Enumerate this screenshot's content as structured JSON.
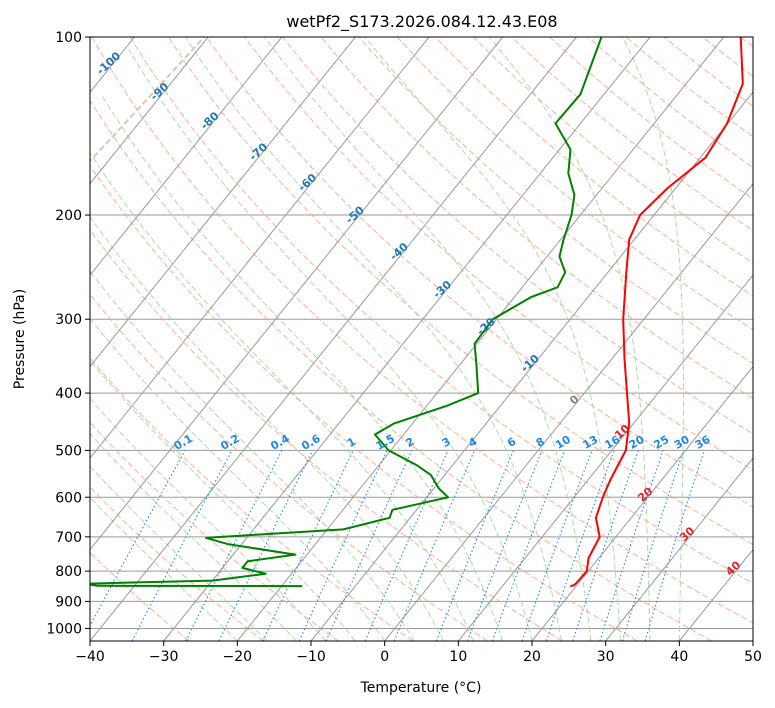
{
  "chart_data": {
    "type": "line",
    "subtype": "skew-T log-P diagram",
    "title": "wetPf2_S173.2026.084.12.43.E08",
    "xlabel": "Temperature (°C)",
    "ylabel": "Pressure (hPa)",
    "xlim": [
      -40,
      50
    ],
    "ylim": [
      1050,
      100
    ],
    "x_ticks": [
      -40,
      -30,
      -20,
      -10,
      0,
      10,
      20,
      30,
      40,
      50
    ],
    "x_tick_labels": [
      "−40",
      "−30",
      "−20",
      "−10",
      "0",
      "10",
      "20",
      "30",
      "40",
      "50"
    ],
    "y_ticks": [
      100,
      200,
      300,
      400,
      500,
      600,
      700,
      800,
      900,
      1000
    ],
    "y_tick_labels": [
      "100",
      "200",
      "300",
      "400",
      "500",
      "600",
      "700",
      "800",
      "900",
      "1000"
    ],
    "grid": true,
    "series": [
      {
        "name": "temperature",
        "color": "#ff0000",
        "points": [
          [
            848,
            19.2
          ],
          [
            845,
            19.6
          ],
          [
            835,
            19.7
          ],
          [
            800,
            19.8
          ],
          [
            760,
            18.6
          ],
          [
            700,
            17.8
          ],
          [
            650,
            15.2
          ],
          [
            600,
            13.9
          ],
          [
            560,
            13.0
          ],
          [
            500,
            11.9
          ],
          [
            450,
            9.4
          ],
          [
            400,
            5.8
          ],
          [
            350,
            1.7
          ],
          [
            300,
            -2.8
          ],
          [
            250,
            -7.5
          ],
          [
            220,
            -10.7
          ],
          [
            200,
            -11.9
          ],
          [
            180,
            -11.1
          ],
          [
            160,
            -9.3
          ],
          [
            140,
            -10.1
          ],
          [
            120,
            -12.3
          ],
          [
            100,
            -17.7
          ]
        ]
      },
      {
        "name": "dewpoint",
        "color": "#008000",
        "points": [
          [
            848,
            -17.2
          ],
          [
            847,
            -45.0
          ],
          [
            840,
            -47.0
          ],
          [
            830,
            -30.0
          ],
          [
            808,
            -23.5
          ],
          [
            790,
            -27.3
          ],
          [
            770,
            -27.3
          ],
          [
            750,
            -21.6
          ],
          [
            720,
            -31.9
          ],
          [
            703,
            -35.5
          ],
          [
            690,
            -26.0
          ],
          [
            680,
            -17.8
          ],
          [
            650,
            -12.8
          ],
          [
            630,
            -13.3
          ],
          [
            600,
            -7.1
          ],
          [
            580,
            -9.3
          ],
          [
            550,
            -11.9
          ],
          [
            530,
            -14.8
          ],
          [
            500,
            -20.3
          ],
          [
            470,
            -23.9
          ],
          [
            450,
            -22.5
          ],
          [
            420,
            -17.2
          ],
          [
            400,
            -14.4
          ],
          [
            360,
            -17.6
          ],
          [
            330,
            -20.3
          ],
          [
            300,
            -20.5
          ],
          [
            275,
            -17.7
          ],
          [
            265,
            -15.2
          ],
          [
            250,
            -15.8
          ],
          [
            235,
            -18.3
          ],
          [
            220,
            -19.6
          ],
          [
            200,
            -21.2
          ],
          [
            185,
            -23.0
          ],
          [
            170,
            -26.2
          ],
          [
            155,
            -28.5
          ],
          [
            140,
            -33.4
          ],
          [
            125,
            -33.2
          ],
          [
            100,
            -36.6
          ]
        ]
      }
    ],
    "isotherm_labels": [
      "-100",
      "-90",
      "-80",
      "-70",
      "-60",
      "-50",
      "-40",
      "-30",
      "-20",
      "-10",
      "0",
      "10",
      "20",
      "30",
      "40"
    ],
    "mixing_ratio_labels": [
      "0.1",
      "0.2",
      "0.4",
      "0.6",
      "1",
      "1.5",
      "2",
      "3",
      "4",
      "6",
      "8",
      "10",
      "13",
      "16",
      "20",
      "25",
      "30",
      "36"
    ],
    "mixing_ratio_values": [
      0.1,
      0.2,
      0.4,
      0.6,
      1,
      1.5,
      2,
      3,
      4,
      6,
      8,
      10,
      13,
      16,
      20,
      25,
      30,
      36
    ],
    "line_colors": {
      "isotherm": "#9a9a9a",
      "dry_adiabat": "#f4a582",
      "moist_adiabat": "#a6d5a6",
      "mixing_ratio": "#1e88e5",
      "reference_adiabat": "#d8c8b4"
    }
  }
}
